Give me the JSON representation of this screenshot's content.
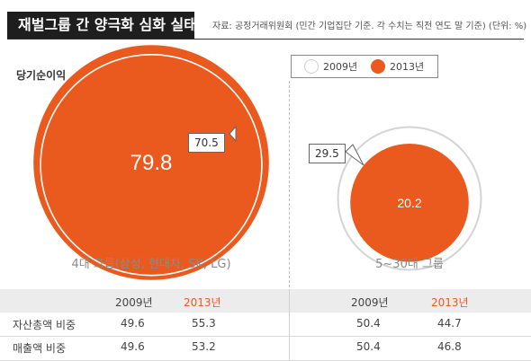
{
  "header": {
    "title": "재벌그룹 간 양극화 심화 실태",
    "source": "자료: 공정거래위원회 (민간 기업집단 기준. 각 수치는 직전 연도 말 기준)   (단위: %)"
  },
  "chart_data": {
    "type": "bubble",
    "metric_label": "당기순이익",
    "legend": [
      "2009년",
      "2013년"
    ],
    "colors": {
      "2009": "#ffffff",
      "2013": "#ea5a1e",
      "outline": "#d4d4d4"
    },
    "groups": [
      {
        "name": "4대 그룹(삼성, 현대차, SK, LG)",
        "v2009": "70.5",
        "v2013": "79.8"
      },
      {
        "name": "5~30대 그룹",
        "v2009": "29.5",
        "v2013": "20.2"
      }
    ]
  },
  "table": {
    "years": [
      "2009년",
      "2013년"
    ],
    "rows": [
      {
        "label": "자산총액 비중",
        "g1": [
          "49.6",
          "55.3"
        ],
        "g2": [
          "50.4",
          "44.7"
        ]
      },
      {
        "label": "매출액 비중",
        "g1": [
          "49.6",
          "53.2"
        ],
        "g2": [
          "50.4",
          "46.8"
        ]
      }
    ]
  }
}
